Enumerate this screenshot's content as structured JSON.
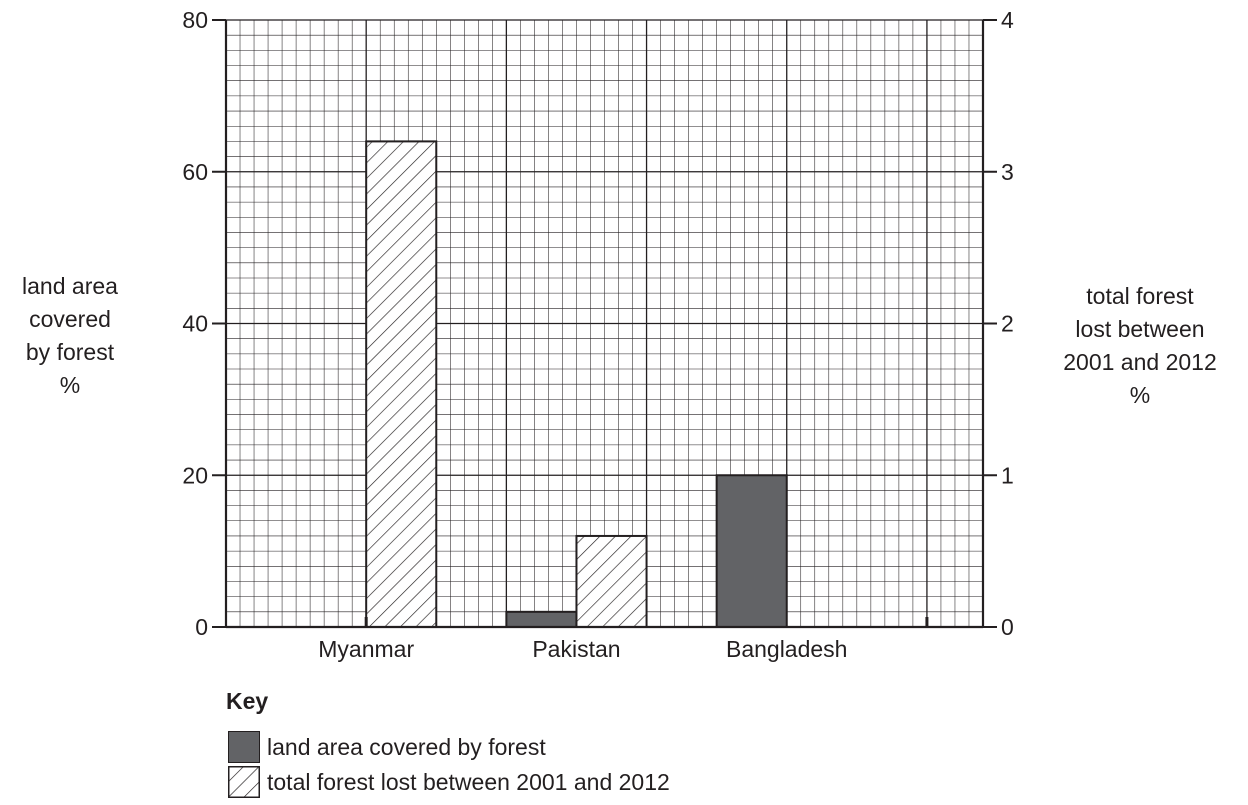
{
  "chart_data": {
    "type": "bar",
    "categories": [
      "Myanmar",
      "Pakistan",
      "Bangladesh"
    ],
    "left_axis": {
      "label": "land area\ncovered\nby forest\n%",
      "ylim": [
        0,
        80
      ],
      "ticks": [
        0,
        20,
        40,
        60,
        80
      ]
    },
    "right_axis": {
      "label": "total forest\nlost between\n2001 and 2012\n%",
      "ylim": [
        0,
        4
      ],
      "ticks": [
        0,
        1,
        2,
        3,
        4
      ]
    },
    "series": [
      {
        "name": "land area covered by forest",
        "axis": "left",
        "pattern": "solid",
        "color": "#626366",
        "values": [
          null,
          2,
          20
        ]
      },
      {
        "name": "total forest lost between 2001 and 2012",
        "axis": "right",
        "pattern": "hatched",
        "color": "#ffffff",
        "values": [
          3.2,
          0.6,
          null
        ]
      }
    ],
    "grid": true,
    "legend": {
      "title": "Key",
      "position": "bottom-left"
    }
  }
}
